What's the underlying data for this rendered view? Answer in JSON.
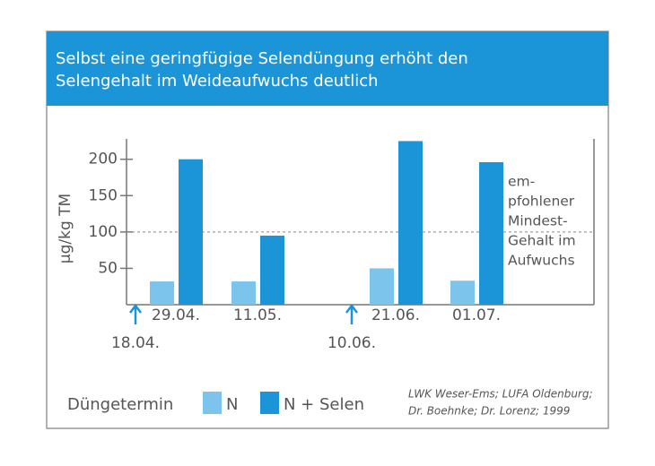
{
  "chart_data": {
    "type": "bar",
    "title": [
      "Selbst eine geringfügige Selendüngung erhöht den",
      "Selengehalt im Weideaufwuchs deutlich"
    ],
    "y_label": "µg/kg TM",
    "categories": [
      "29.04.",
      "11.05.",
      "21.06.",
      "01.07."
    ],
    "series": [
      {
        "name": "N",
        "color": "#7dc4ec",
        "values": [
          32,
          32,
          50,
          33
        ]
      },
      {
        "name": "N + Selen",
        "color": "#1b95d8",
        "values": [
          200,
          95,
          225,
          196
        ]
      }
    ],
    "ylim": [
      0,
      228
    ],
    "yticks": [
      50,
      100,
      150,
      200
    ],
    "reference": {
      "value": 100,
      "label": [
        "em-",
        "pfohlener",
        "Mindest-",
        "Gehalt im",
        "Aufwuchs"
      ]
    },
    "fertilization_dates": [
      "18.04.",
      "10.06."
    ],
    "legend_title": "Düngetermin",
    "source": [
      "LWK Weser-Ems; LUFA Oldenburg;",
      "Dr. Boehnke; Dr. Lorenz; 1999"
    ]
  }
}
